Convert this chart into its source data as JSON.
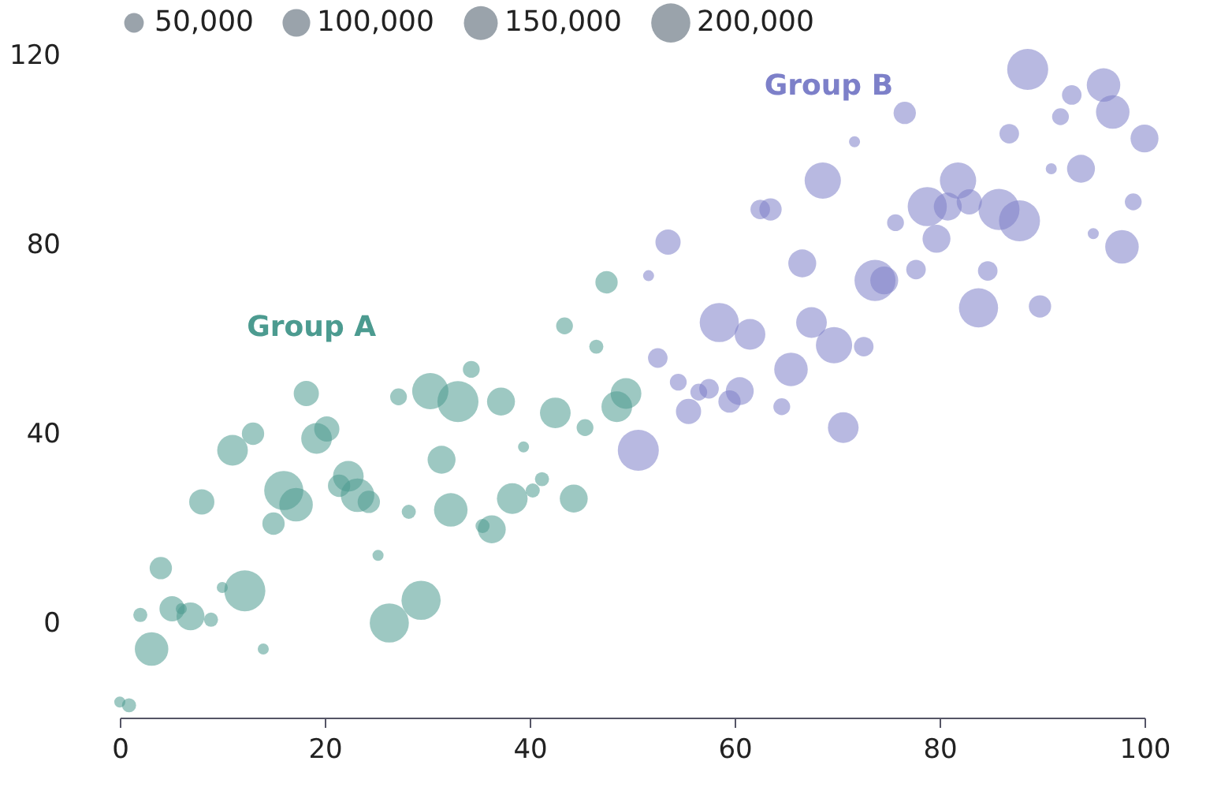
{
  "chart_data": {
    "type": "bubble",
    "xlim": [
      0,
      100
    ],
    "xticks": [
      0,
      20,
      40,
      60,
      80,
      100
    ],
    "ylim": [
      -20,
      120
    ],
    "yticks": [
      0,
      40,
      80,
      120
    ],
    "grid": false,
    "legend": "top",
    "size_legend": [
      {
        "value": 50000,
        "label": "50,000"
      },
      {
        "value": 100000,
        "label": "100,000"
      },
      {
        "value": 150000,
        "label": "150,000"
      },
      {
        "value": 200000,
        "label": "200,000"
      }
    ],
    "series": [
      {
        "name": "Group A",
        "color": "#4c9b90",
        "x": [
          0,
          0.9,
          2,
          3.1,
          4,
          5.1,
          6,
          6.9,
          8.9,
          10,
          12.2,
          14,
          8,
          11,
          13,
          15,
          16,
          17.2,
          18.2,
          19.2,
          20.2,
          21.4,
          22.3,
          23.2,
          24.3,
          25.2,
          26.3,
          27.2,
          28.2,
          29.4,
          30.3,
          31.4,
          32.3,
          33,
          34.3,
          35.4,
          36.3,
          37.2,
          38.3,
          39.4,
          40.3,
          41.2,
          42.5,
          43.4,
          44.3,
          45.4,
          46.5,
          47.5,
          48.5,
          49.4
        ],
        "values": [
          -16.7,
          -17.4,
          1.7,
          -5.5,
          11.6,
          3,
          3,
          1.4,
          0.7,
          7.5,
          6.8,
          -5.5,
          25.6,
          36.5,
          40,
          21,
          28,
          25,
          48.5,
          39,
          41,
          29,
          31,
          27,
          25.6,
          14.3,
          0,
          47.8,
          23.5,
          4.8,
          49,
          34.5,
          23.9,
          46.8,
          53.6,
          20.5,
          19.8,
          46.8,
          26.3,
          37.2,
          28,
          30.4,
          44.4,
          62.8,
          26.3,
          41.3,
          58.4,
          72,
          45.7,
          48.5
        ],
        "sizes": [
          16000,
          26000,
          26000,
          147000,
          65000,
          83000,
          16000,
          102000,
          26000,
          16000,
          220000,
          16000,
          83000,
          123000,
          65000,
          65000,
          200000,
          147000,
          83000,
          123000,
          83000,
          65000,
          123000,
          147000,
          65000,
          16000,
          200000,
          37000,
          26000,
          200000,
          172000,
          102000,
          147000,
          220000,
          37000,
          26000,
          102000,
          102000,
          123000,
          16000,
          26000,
          26000,
          123000,
          37000,
          102000,
          37000,
          26000,
          65000,
          123000,
          123000
        ]
      },
      {
        "name": "Group B",
        "color": "#7d80c9",
        "x": [
          50.6,
          51.6,
          52.5,
          53.5,
          54.5,
          55.5,
          56.5,
          57.5,
          58.5,
          59.5,
          60.5,
          61.5,
          62.5,
          63.5,
          64.6,
          65.5,
          66.6,
          67.5,
          68.6,
          69.7,
          70.6,
          71.7,
          72.6,
          73.7,
          74.6,
          75.7,
          76.6,
          77.7,
          78.8,
          79.7,
          80.8,
          81.8,
          82.9,
          83.8,
          84.7,
          85.8,
          86.8,
          87.8,
          88.6,
          89.8,
          90.9,
          91.8,
          92.9,
          93.8,
          95,
          96,
          96.9,
          97.8,
          98.9,
          100
        ],
        "values": [
          36.5,
          73.4,
          56,
          80.5,
          50.9,
          44.7,
          48.8,
          49.5,
          63.5,
          46.8,
          49,
          61,
          87.4,
          87.4,
          45.7,
          53.6,
          76,
          63.5,
          93.5,
          58.7,
          41.3,
          101.7,
          58.4,
          72.4,
          72.4,
          84.6,
          107.8,
          74.7,
          88,
          81.2,
          88,
          93.5,
          89,
          66.6,
          74.4,
          87.4,
          103.4,
          85,
          117,
          66.9,
          96,
          107,
          111.6,
          96,
          82.3,
          113.7,
          108,
          79.5,
          89,
          102.4
        ],
        "sizes": [
          220000,
          16000,
          50000,
          83000,
          37000,
          83000,
          37000,
          50000,
          200000,
          65000,
          102000,
          123000,
          50000,
          65000,
          37000,
          147000,
          102000,
          123000,
          172000,
          172000,
          123000,
          16000,
          50000,
          220000,
          102000,
          37000,
          65000,
          50000,
          200000,
          102000,
          102000,
          172000,
          83000,
          200000,
          50000,
          220000,
          50000,
          220000,
          220000,
          65000,
          16000,
          37000,
          50000,
          102000,
          16000,
          147000,
          147000,
          147000,
          37000,
          102000
        ]
      }
    ]
  }
}
